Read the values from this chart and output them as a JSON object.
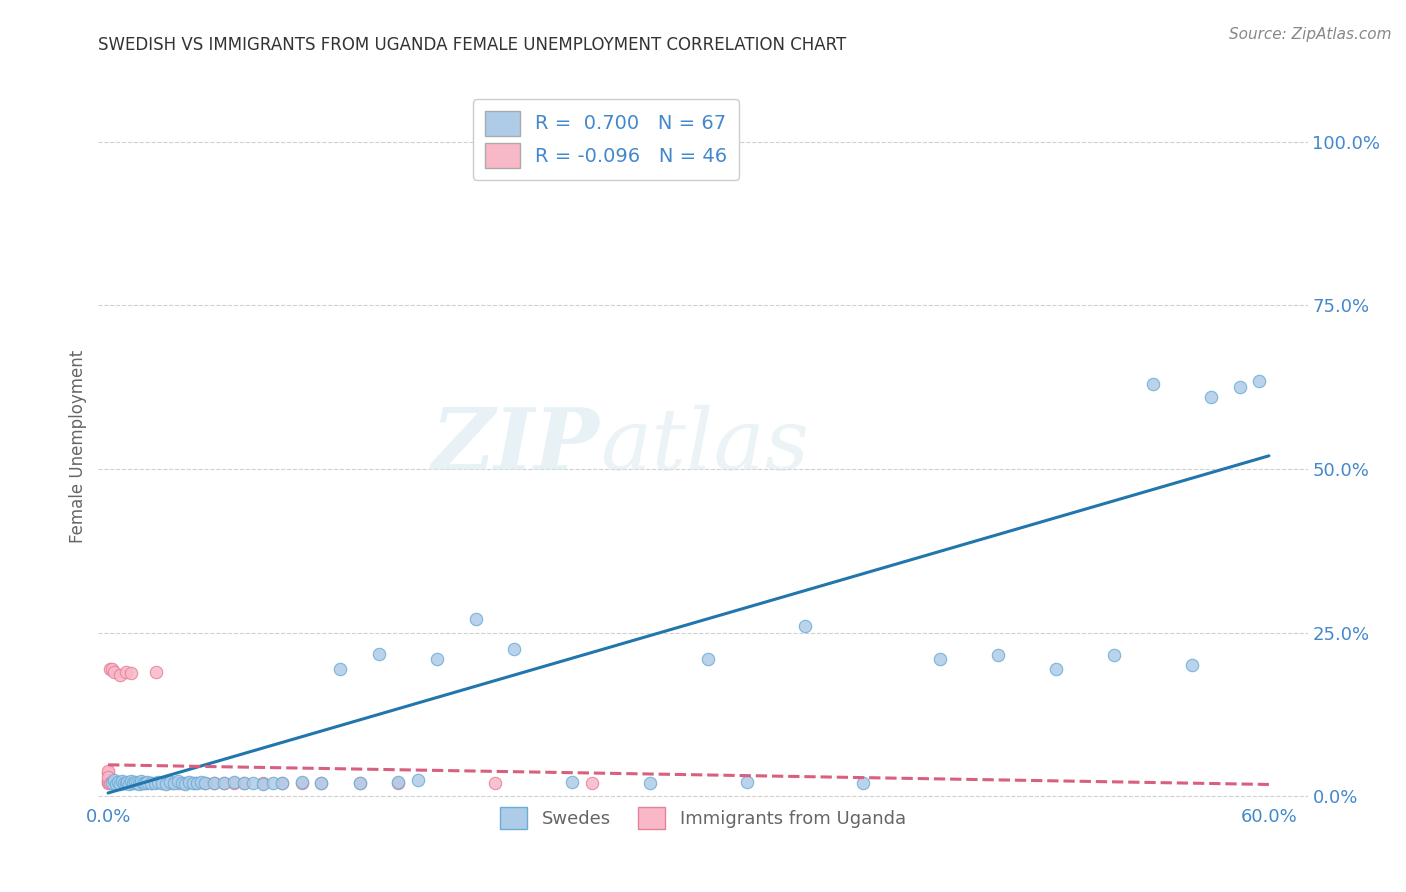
{
  "title": "SWEDISH VS IMMIGRANTS FROM UGANDA FEMALE UNEMPLOYMENT CORRELATION CHART",
  "source": "Source: ZipAtlas.com",
  "xlabel_swedes": "Swedes",
  "xlabel_uganda": "Immigrants from Uganda",
  "ylabel": "Female Unemployment",
  "xlim": [
    -0.005,
    0.62
  ],
  "ylim": [
    -0.01,
    1.08
  ],
  "xticks": [
    0.0,
    0.1,
    0.2,
    0.3,
    0.4,
    0.5,
    0.6
  ],
  "xticklabels": [
    "0.0%",
    "",
    "",
    "",
    "",
    "",
    "60.0%"
  ],
  "yticks_right": [
    0.0,
    0.25,
    0.5,
    0.75,
    1.0
  ],
  "yticklabels_right": [
    "0.0%",
    "25.0%",
    "50.0%",
    "75.0%",
    "100.0%"
  ],
  "R_swedes": 0.7,
  "N_swedes": 67,
  "R_uganda": -0.096,
  "N_uganda": 46,
  "swedes_color": "#aecce8",
  "swedes_edge_color": "#6aaed6",
  "swedes_line_color": "#2176ae",
  "uganda_color": "#f9b8c8",
  "uganda_edge_color": "#e8809a",
  "uganda_line_color": "#d95f7f",
  "background_color": "#ffffff",
  "grid_color": "#d0d0d0",
  "title_color": "#333333",
  "axis_label_color": "#666666",
  "tick_color": "#4488cc",
  "swedes_x": [
    0.002,
    0.003,
    0.004,
    0.005,
    0.006,
    0.007,
    0.008,
    0.009,
    0.01,
    0.011,
    0.012,
    0.013,
    0.014,
    0.015,
    0.016,
    0.017,
    0.018,
    0.019,
    0.02,
    0.022,
    0.024,
    0.026,
    0.028,
    0.03,
    0.032,
    0.034,
    0.036,
    0.038,
    0.04,
    0.042,
    0.044,
    0.046,
    0.048,
    0.05,
    0.055,
    0.06,
    0.065,
    0.07,
    0.075,
    0.08,
    0.085,
    0.09,
    0.1,
    0.11,
    0.12,
    0.13,
    0.14,
    0.15,
    0.16,
    0.17,
    0.19,
    0.21,
    0.24,
    0.28,
    0.31,
    0.33,
    0.36,
    0.39,
    0.43,
    0.46,
    0.49,
    0.52,
    0.54,
    0.56,
    0.57,
    0.585,
    0.595
  ],
  "swedes_y": [
    0.02,
    0.025,
    0.018,
    0.022,
    0.019,
    0.023,
    0.021,
    0.02,
    0.022,
    0.019,
    0.023,
    0.021,
    0.022,
    0.02,
    0.019,
    0.023,
    0.021,
    0.02,
    0.022,
    0.021,
    0.02,
    0.022,
    0.021,
    0.019,
    0.022,
    0.02,
    0.023,
    0.021,
    0.019,
    0.022,
    0.02,
    0.021,
    0.022,
    0.02,
    0.021,
    0.02,
    0.022,
    0.02,
    0.021,
    0.019,
    0.021,
    0.02,
    0.022,
    0.021,
    0.195,
    0.02,
    0.218,
    0.022,
    0.025,
    0.21,
    0.27,
    0.225,
    0.022,
    0.021,
    0.21,
    0.022,
    0.26,
    0.021,
    0.21,
    0.215,
    0.195,
    0.215,
    0.63,
    0.2,
    0.61,
    0.625,
    0.635
  ],
  "uganda_x": [
    0.0,
    0.0,
    0.0,
    0.0,
    0.0,
    0.0,
    0.001,
    0.001,
    0.002,
    0.002,
    0.003,
    0.003,
    0.004,
    0.005,
    0.006,
    0.007,
    0.008,
    0.009,
    0.01,
    0.011,
    0.012,
    0.014,
    0.016,
    0.018,
    0.02,
    0.022,
    0.025,
    0.028,
    0.03,
    0.033,
    0.036,
    0.04,
    0.045,
    0.05,
    0.055,
    0.06,
    0.065,
    0.07,
    0.08,
    0.09,
    0.1,
    0.11,
    0.13,
    0.15,
    0.2,
    0.25
  ],
  "uganda_y": [
    0.02,
    0.035,
    0.022,
    0.038,
    0.025,
    0.03,
    0.02,
    0.195,
    0.022,
    0.195,
    0.02,
    0.19,
    0.022,
    0.02,
    0.185,
    0.021,
    0.02,
    0.19,
    0.021,
    0.02,
    0.188,
    0.02,
    0.021,
    0.02,
    0.021,
    0.02,
    0.19,
    0.021,
    0.02,
    0.021,
    0.02,
    0.021,
    0.02,
    0.021,
    0.02,
    0.021,
    0.02,
    0.021,
    0.021,
    0.02,
    0.021,
    0.02,
    0.02,
    0.021,
    0.02,
    0.021
  ],
  "watermark_zip": "ZIP",
  "watermark_atlas": "atlas",
  "marker_size": 80,
  "line_width": 2.2,
  "swedes_trend_x": [
    0.0,
    0.6
  ],
  "swedes_trend_y": [
    0.005,
    0.52
  ],
  "uganda_trend_x": [
    0.0,
    0.6
  ],
  "uganda_trend_y": [
    0.048,
    0.018
  ]
}
